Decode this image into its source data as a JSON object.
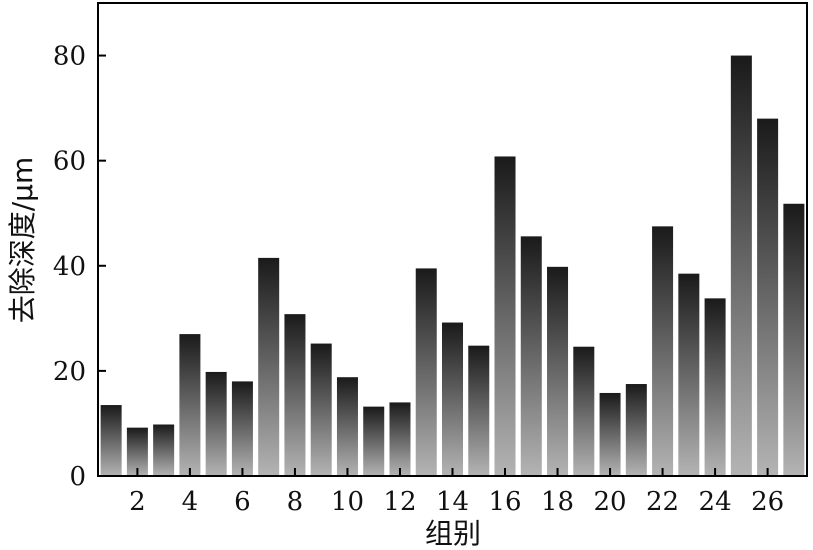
{
  "chart_data": {
    "type": "bar",
    "xlabel": "组别",
    "ylabel": "去除深度/μm",
    "ylim": [
      0,
      90
    ],
    "yticks": [
      0,
      20,
      40,
      60,
      80
    ],
    "xtick_labels": [
      "2",
      "4",
      "6",
      "8",
      "10",
      "12",
      "14",
      "16",
      "18",
      "20",
      "22",
      "24",
      "26"
    ],
    "categories": [
      "1",
      "2",
      "3",
      "4",
      "5",
      "6",
      "7",
      "8",
      "9",
      "10",
      "11",
      "12",
      "13",
      "14",
      "15",
      "16",
      "17",
      "18",
      "19",
      "20",
      "21",
      "22",
      "23",
      "24",
      "25",
      "26",
      "27"
    ],
    "values": [
      13.5,
      9.2,
      9.8,
      27,
      19.8,
      18,
      41.5,
      30.8,
      25.2,
      18.8,
      13.2,
      14,
      39.5,
      29.2,
      24.8,
      60.8,
      45.6,
      39.8,
      24.6,
      15.8,
      17.5,
      47.5,
      38.5,
      33.8,
      80,
      68,
      51.8
    ],
    "grid": false,
    "bar_gradient": {
      "top": "#1a1a1a",
      "bottom": "#b4b4b4"
    }
  }
}
